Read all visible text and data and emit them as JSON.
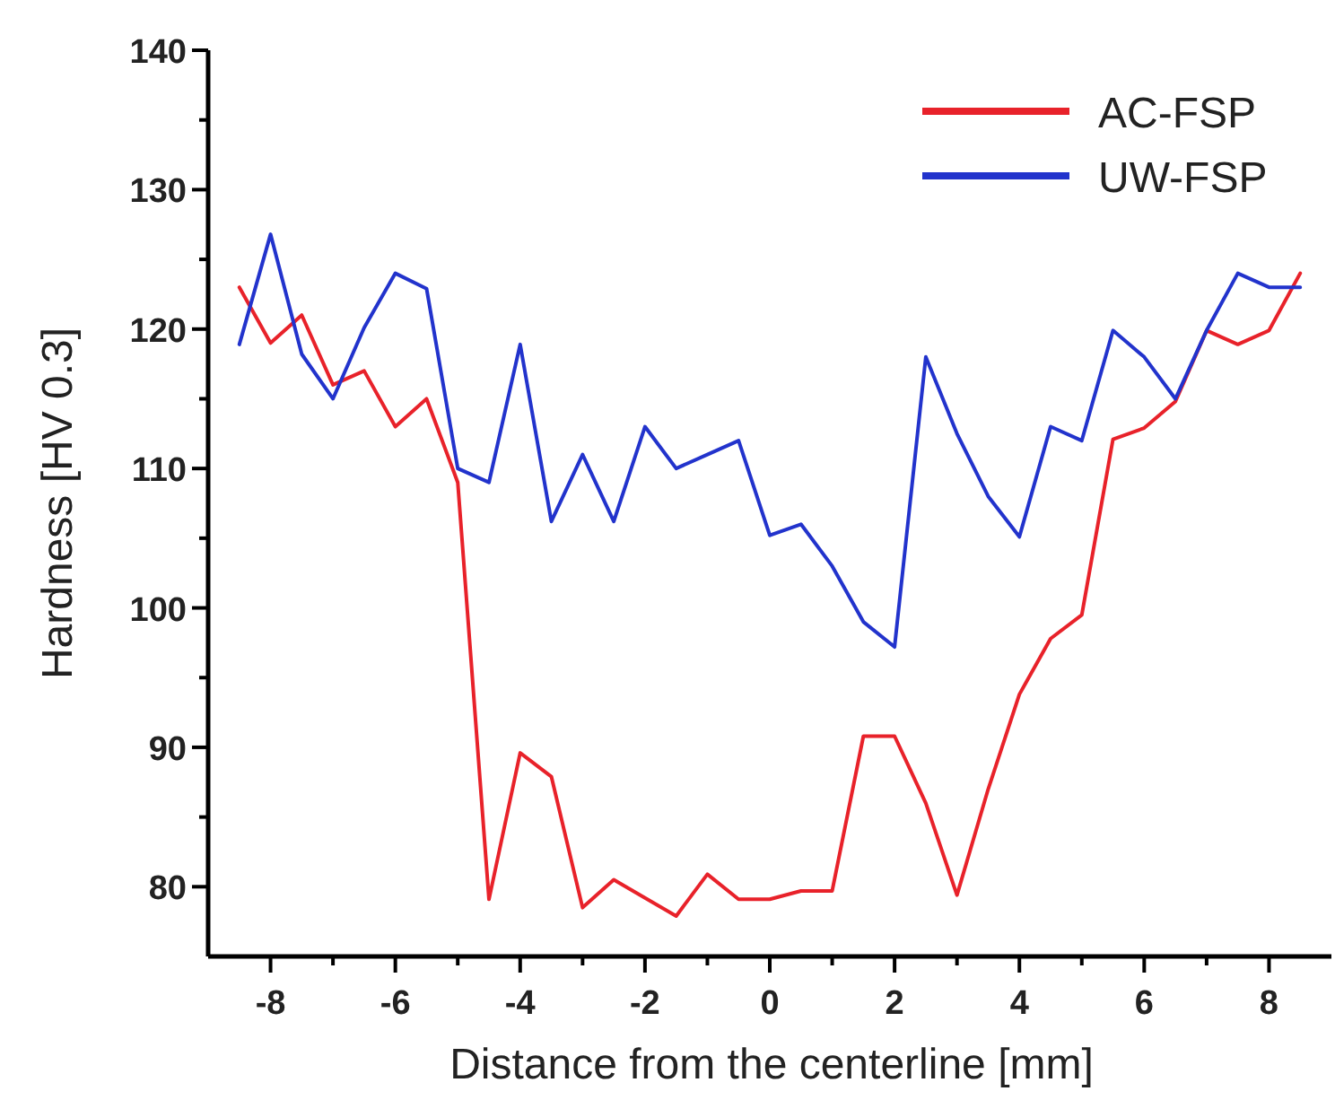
{
  "chart_data": {
    "type": "line",
    "xlabel": "Distance from the centerline [mm]",
    "ylabel": "Hardness [HV 0.3]",
    "x": [
      -8.5,
      -8,
      -7.5,
      -7,
      -6.5,
      -6,
      -5.5,
      -5,
      -4.5,
      -4,
      -3.5,
      -3,
      -2.5,
      -2,
      -1.5,
      -1,
      -0.5,
      0,
      0.5,
      1,
      1.5,
      2,
      2.5,
      3,
      3.5,
      4,
      4.5,
      5,
      5.5,
      6,
      6.5,
      7,
      7.5,
      8,
      8.5
    ],
    "series": [
      {
        "name": "AC-FSP",
        "color": "#e8222a",
        "values": [
          123,
          119,
          121,
          116,
          117,
          113,
          115,
          109,
          79.1,
          89.6,
          87.9,
          78.5,
          80.5,
          79.2,
          77.9,
          80.9,
          79.1,
          79.1,
          79.7,
          79.7,
          90.8,
          90.8,
          86,
          79.4,
          87,
          93.8,
          97.8,
          99.5,
          112.1,
          112.9,
          114.8,
          119.9,
          118.9,
          119.9,
          124
        ]
      },
      {
        "name": "UW-FSP",
        "color": "#2233cc",
        "values": [
          118.9,
          126.8,
          118.2,
          115,
          120.1,
          124,
          122.9,
          110,
          109,
          118.9,
          106.2,
          111,
          106.2,
          113,
          110,
          111,
          112,
          105.2,
          106,
          103,
          99,
          97.2,
          118,
          112.5,
          108,
          105.1,
          113,
          112,
          119.9,
          118,
          115,
          119.9,
          124,
          123,
          123
        ]
      }
    ],
    "xlim": [
      -9,
      9
    ],
    "xticks": [
      -8,
      {
        "value": -7,
        "label": null
      },
      -6,
      {
        "value": -5,
        "label": null
      },
      -4,
      {
        "value": -3,
        "label": null
      },
      -2,
      {
        "value": -1,
        "label": null
      },
      0,
      {
        "value": 1,
        "label": null
      },
      2,
      {
        "value": 3,
        "label": null
      },
      4,
      {
        "value": 5,
        "label": null
      },
      6,
      {
        "value": 7,
        "label": null
      },
      8
    ],
    "ylim": [
      75,
      140
    ],
    "yticks": [
      80,
      {
        "value": 85,
        "label": null
      },
      90,
      {
        "value": 95,
        "label": null
      },
      100,
      {
        "value": 105,
        "label": null
      },
      110,
      {
        "value": 115,
        "label": null
      },
      120,
      {
        "value": 125,
        "label": null
      },
      130,
      {
        "value": 135,
        "label": null
      },
      140
    ],
    "grid": false,
    "legend": "top right",
    "marker": "none",
    "line_style": "solid"
  }
}
